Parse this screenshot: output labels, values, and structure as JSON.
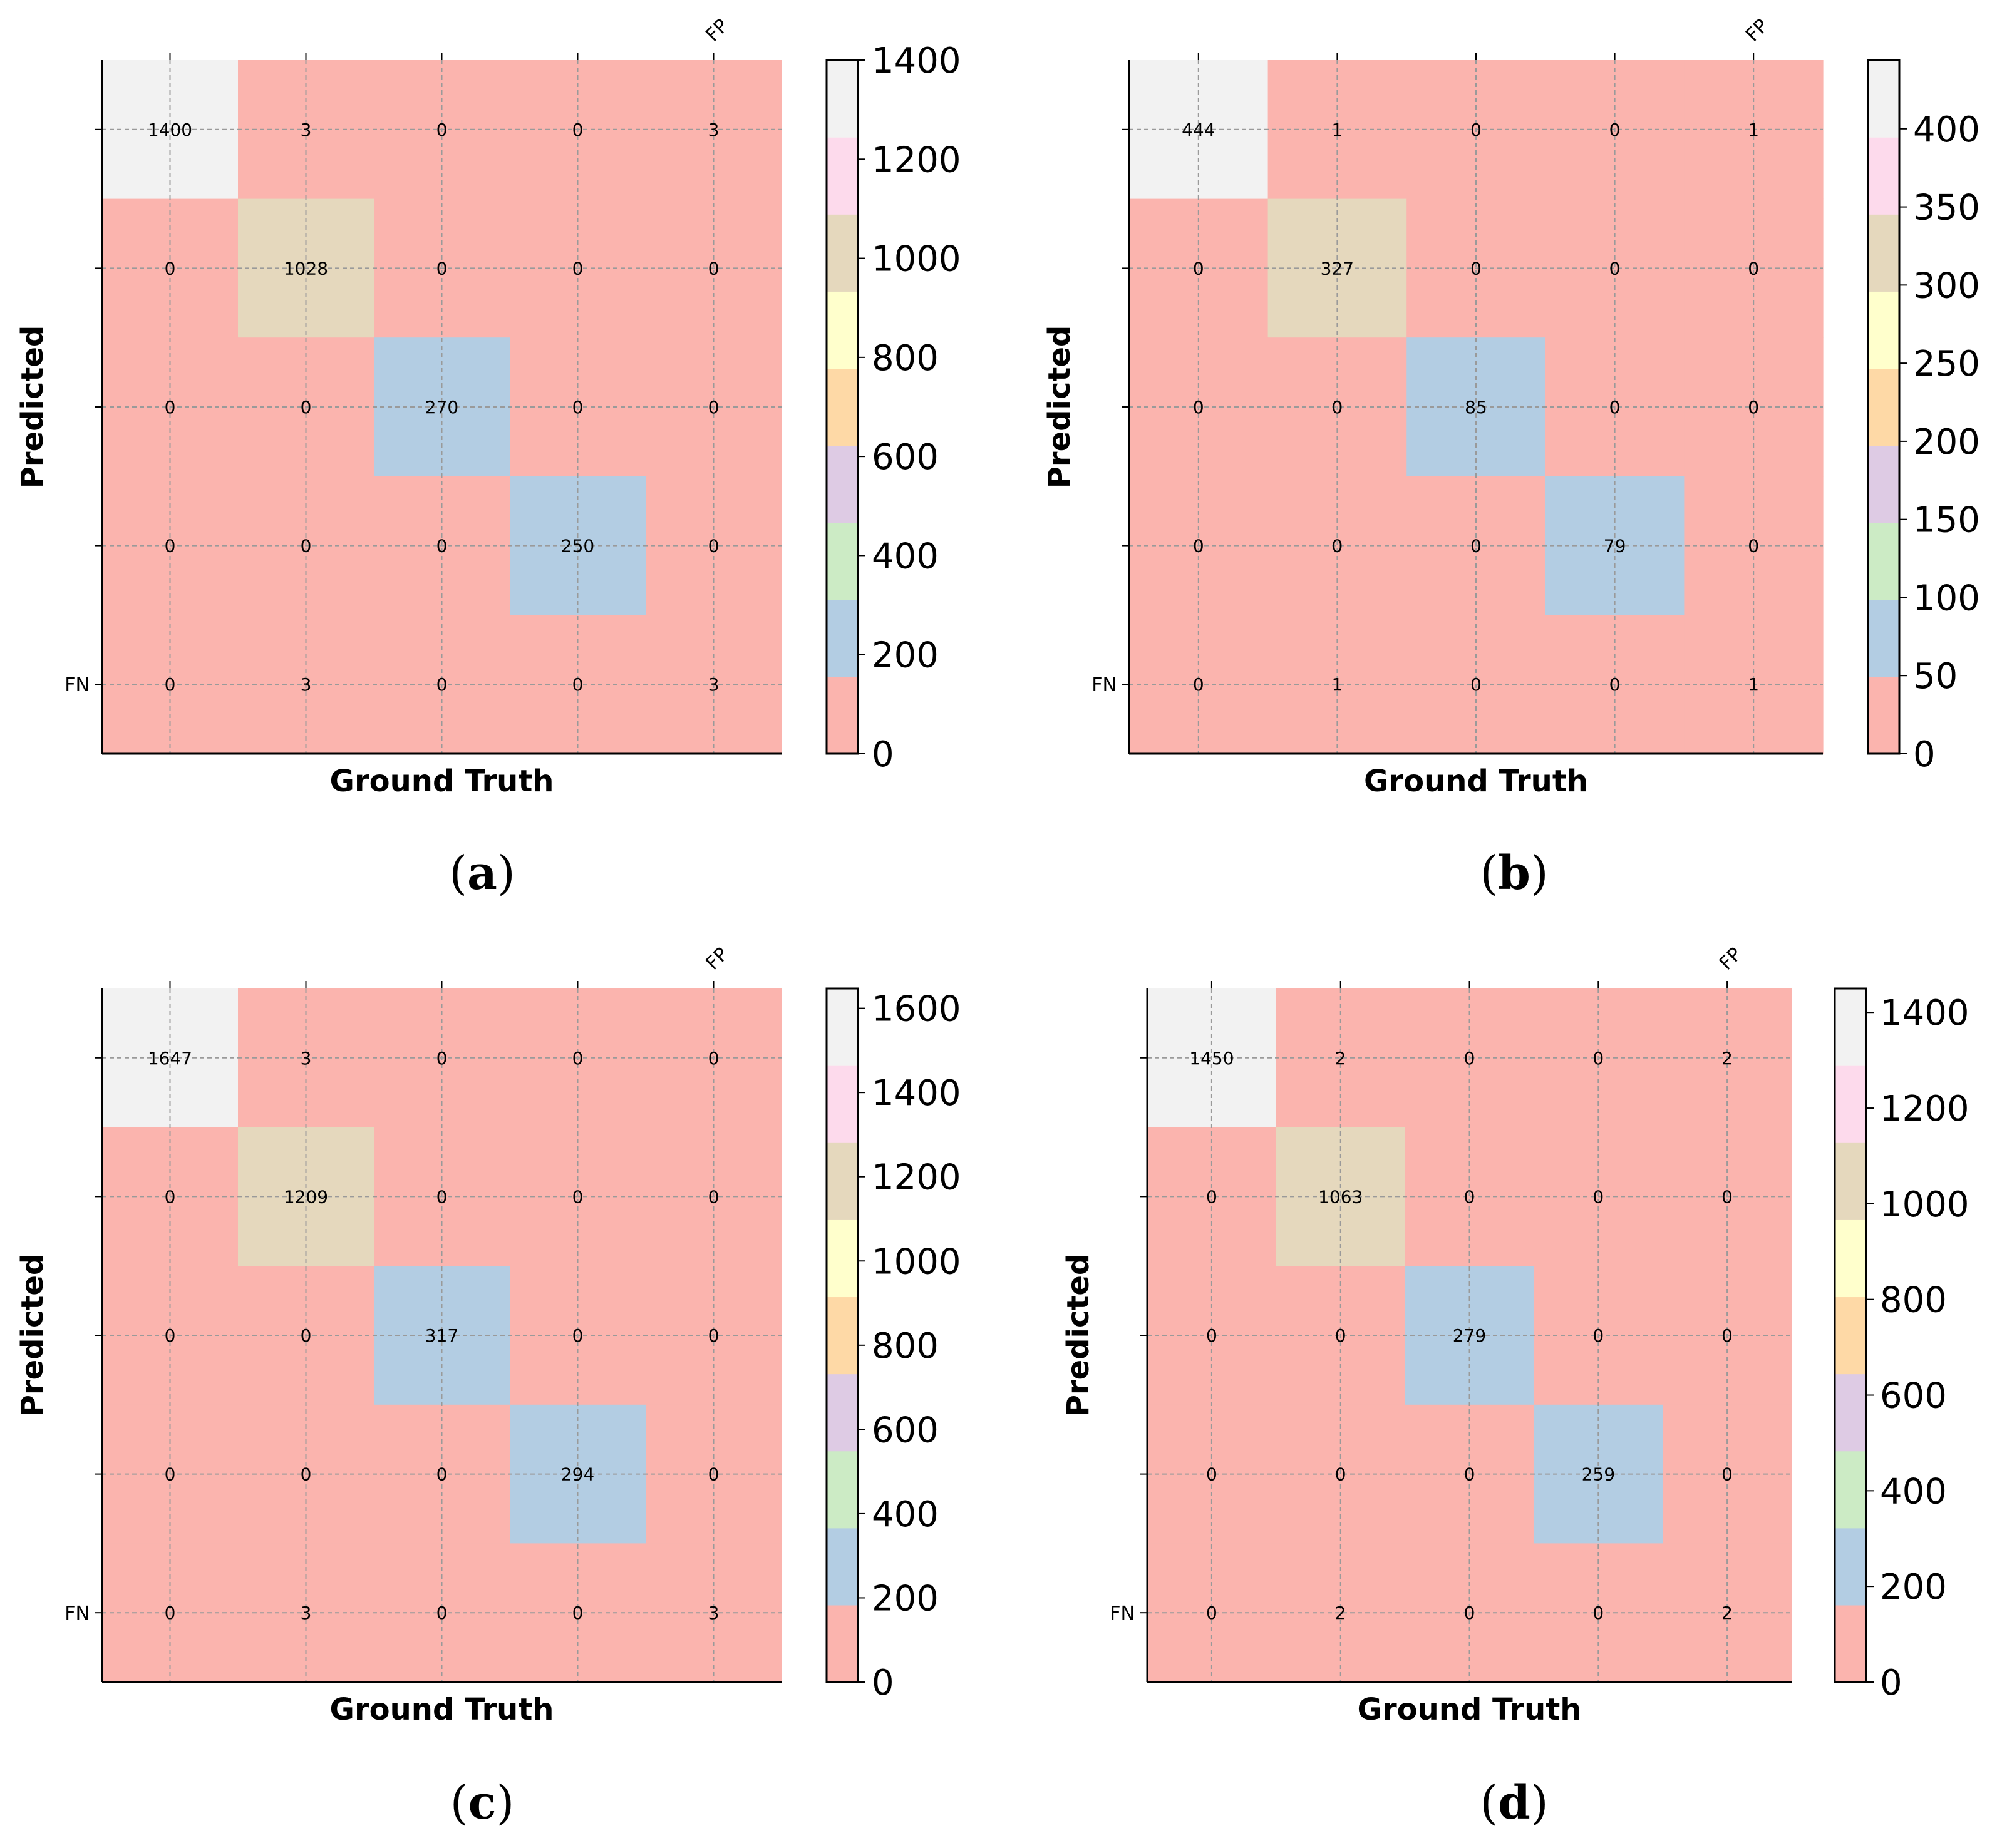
{
  "palette": [
    "#fbb4ae",
    "#b3cde3",
    "#ccebc5",
    "#decbe4",
    "#fed9a6",
    "#ffffcc",
    "#e5d8bd",
    "#fddaec",
    "#f2f2f2"
  ],
  "chart_data": [
    {
      "type": "heatmap",
      "caption": "(a)",
      "caption_letter": "a",
      "xlabel": "Ground Truth",
      "ylabel": "Predicted",
      "fp_label": "FP",
      "fn_label": "FN",
      "matrix": [
        [
          1400,
          3,
          0,
          0,
          3
        ],
        [
          0,
          1028,
          0,
          0,
          0
        ],
        [
          0,
          0,
          270,
          0,
          0
        ],
        [
          0,
          0,
          0,
          250,
          0
        ],
        [
          0,
          3,
          0,
          0,
          3
        ]
      ],
      "vmin": 0,
      "vmax": 1400,
      "colorbar_ticks": [
        0,
        200,
        400,
        600,
        800,
        1000,
        1200,
        1400
      ]
    },
    {
      "type": "heatmap",
      "caption": "(b)",
      "caption_letter": "b",
      "xlabel": "Ground Truth",
      "ylabel": "Predicted",
      "fp_label": "FP",
      "fn_label": "FN",
      "matrix": [
        [
          444,
          1,
          0,
          0,
          1
        ],
        [
          0,
          327,
          0,
          0,
          0
        ],
        [
          0,
          0,
          85,
          0,
          0
        ],
        [
          0,
          0,
          0,
          79,
          0
        ],
        [
          0,
          1,
          0,
          0,
          1
        ]
      ],
      "vmin": 0,
      "vmax": 444,
      "colorbar_ticks": [
        0,
        50,
        100,
        150,
        200,
        250,
        300,
        350,
        400
      ]
    },
    {
      "type": "heatmap",
      "caption": "(c)",
      "caption_letter": "c",
      "xlabel": "Ground Truth",
      "ylabel": "Predicted",
      "fp_label": "FP",
      "fn_label": "FN",
      "matrix": [
        [
          1647,
          3,
          0,
          0,
          0
        ],
        [
          0,
          1209,
          0,
          0,
          0
        ],
        [
          0,
          0,
          317,
          0,
          0
        ],
        [
          0,
          0,
          0,
          294,
          0
        ],
        [
          0,
          3,
          0,
          0,
          3
        ]
      ],
      "vmin": 0,
      "vmax": 1647,
      "colorbar_ticks": [
        0,
        200,
        400,
        600,
        800,
        1000,
        1200,
        1400,
        1600
      ]
    },
    {
      "type": "heatmap",
      "caption": "(d)",
      "caption_letter": "d",
      "xlabel": "Ground Truth",
      "ylabel": "Predicted",
      "fp_label": "FP",
      "fn_label": "FN",
      "matrix": [
        [
          1450,
          2,
          0,
          0,
          2
        ],
        [
          0,
          1063,
          0,
          0,
          0
        ],
        [
          0,
          0,
          279,
          0,
          0
        ],
        [
          0,
          0,
          0,
          259,
          0
        ],
        [
          0,
          2,
          0,
          0,
          2
        ]
      ],
      "vmin": 0,
      "vmax": 1450,
      "colorbar_ticks": [
        0,
        200,
        400,
        600,
        800,
        1000,
        1200,
        1400
      ]
    }
  ]
}
